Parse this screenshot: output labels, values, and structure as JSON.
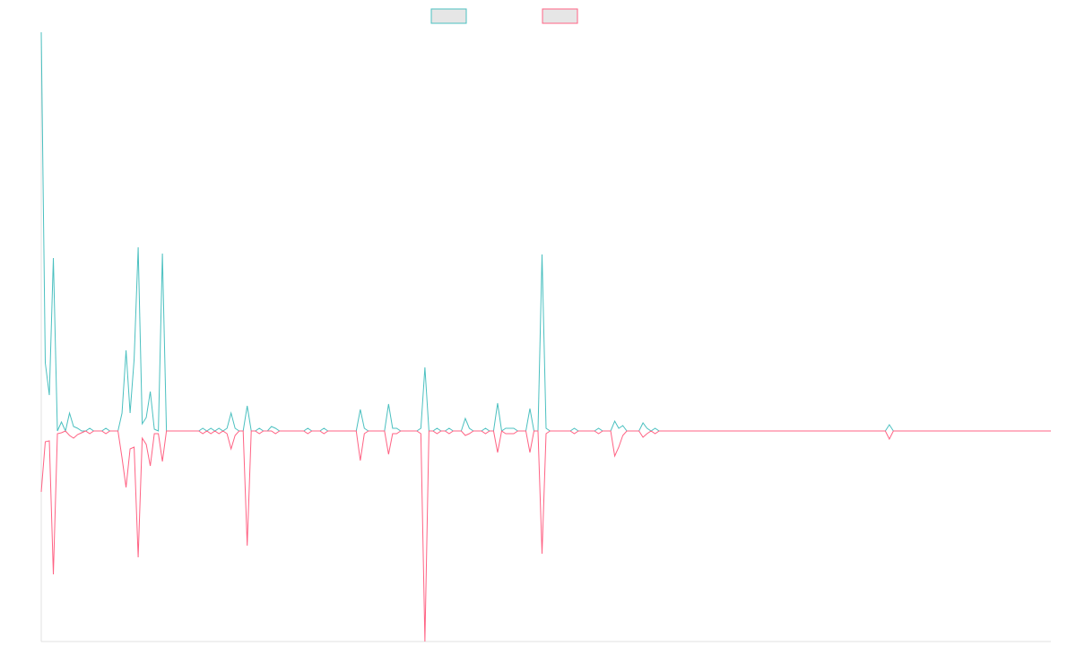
{
  "chart_data": {
    "type": "line",
    "ylim": [
      -235,
      445
    ],
    "legend": "top",
    "series": [
      {
        "color": "#4bc0c0",
        "values": [
          445,
          76,
          40,
          193,
          0,
          10,
          0,
          20,
          5,
          3,
          0,
          0,
          3,
          0,
          0,
          0,
          3,
          0,
          0,
          0,
          20,
          90,
          20,
          80,
          205,
          8,
          15,
          44,
          2,
          0,
          198,
          0,
          0,
          0,
          0,
          0,
          0,
          0,
          0,
          0,
          3,
          0,
          3,
          0,
          3,
          0,
          3,
          20,
          3,
          0,
          0,
          28,
          0,
          0,
          3,
          0,
          0,
          5,
          3,
          0,
          0,
          0,
          0,
          0,
          0,
          0,
          3,
          0,
          0,
          0,
          3,
          0,
          0,
          0,
          0,
          0,
          0,
          0,
          0,
          24,
          3,
          0,
          0,
          0,
          0,
          0,
          30,
          3,
          3,
          0,
          0,
          0,
          0,
          0,
          3,
          71,
          0,
          0,
          3,
          0,
          0,
          3,
          0,
          0,
          0,
          14,
          3,
          0,
          0,
          0,
          3,
          0,
          0,
          31,
          0,
          3,
          3,
          3,
          0,
          0,
          0,
          25,
          0,
          0,
          197,
          3,
          0,
          0,
          0,
          0,
          0,
          0,
          3,
          0,
          0,
          0,
          0,
          0,
          3,
          0,
          0,
          0,
          11,
          3,
          6,
          0,
          0,
          0,
          0,
          9,
          3,
          0,
          3,
          0,
          0,
          0,
          0,
          0,
          0,
          0,
          0,
          0,
          0,
          0,
          0,
          0,
          0,
          0,
          0,
          0,
          0,
          0,
          0,
          0,
          0,
          0,
          0,
          0,
          0,
          0,
          0,
          0,
          0,
          0,
          0,
          0,
          0,
          0,
          0,
          0,
          0,
          0,
          0,
          0,
          0,
          0,
          0,
          0,
          0,
          0,
          0,
          0,
          0,
          0,
          0,
          0,
          0,
          0,
          0,
          0,
          7,
          0,
          0,
          0,
          0,
          0,
          0,
          0,
          0,
          0,
          0,
          0,
          0,
          0,
          0,
          0,
          0,
          0,
          0,
          0,
          0,
          0,
          0,
          0,
          0,
          0,
          0,
          0,
          0,
          0,
          0,
          0,
          0,
          0,
          0,
          0,
          0,
          0,
          0,
          0,
          0
        ]
      },
      {
        "color": "#ff6384",
        "values": [
          -68,
          -12,
          -11,
          -160,
          -3,
          -2,
          0,
          -5,
          -8,
          -4,
          -2,
          0,
          -3,
          0,
          0,
          0,
          -3,
          0,
          0,
          0,
          -30,
          -63,
          -20,
          -18,
          -141,
          -8,
          -15,
          -39,
          -3,
          -3,
          -34,
          0,
          0,
          0,
          0,
          0,
          0,
          0,
          0,
          0,
          -3,
          0,
          -3,
          0,
          -3,
          0,
          -3,
          -20,
          -5,
          0,
          0,
          -128,
          0,
          0,
          -3,
          0,
          0,
          0,
          -3,
          0,
          0,
          0,
          0,
          0,
          0,
          0,
          -3,
          0,
          0,
          0,
          -3,
          0,
          0,
          0,
          0,
          0,
          0,
          0,
          0,
          -33,
          -3,
          0,
          0,
          0,
          0,
          0,
          -26,
          -3,
          -3,
          0,
          0,
          0,
          0,
          0,
          -3,
          -235,
          0,
          0,
          -3,
          0,
          0,
          -3,
          0,
          0,
          0,
          -5,
          -3,
          0,
          0,
          0,
          -3,
          0,
          0,
          -24,
          0,
          -3,
          -3,
          -3,
          0,
          0,
          0,
          -24,
          0,
          0,
          -137,
          -3,
          0,
          0,
          0,
          0,
          0,
          0,
          -3,
          0,
          0,
          0,
          0,
          0,
          -3,
          0,
          0,
          0,
          -28,
          -18,
          -5,
          0,
          0,
          0,
          0,
          -7,
          -3,
          0,
          -3,
          0,
          0,
          0,
          0,
          0,
          0,
          0,
          0,
          0,
          0,
          0,
          0,
          0,
          0,
          0,
          0,
          0,
          0,
          0,
          0,
          0,
          0,
          0,
          0,
          0,
          0,
          0,
          0,
          0,
          0,
          0,
          0,
          0,
          0,
          0,
          0,
          0,
          0,
          0,
          0,
          0,
          0,
          0,
          0,
          0,
          0,
          0,
          0,
          0,
          0,
          0,
          0,
          0,
          0,
          0,
          0,
          0,
          -9,
          0,
          0,
          0,
          0,
          0,
          0,
          0,
          0,
          0,
          0,
          0,
          0,
          0,
          0,
          0,
          0,
          0,
          0,
          0,
          0,
          0,
          0,
          0,
          0,
          0,
          0,
          0,
          0,
          0,
          0,
          0,
          0,
          0,
          0,
          0,
          0,
          0,
          0,
          0,
          0
        ]
      }
    ]
  }
}
